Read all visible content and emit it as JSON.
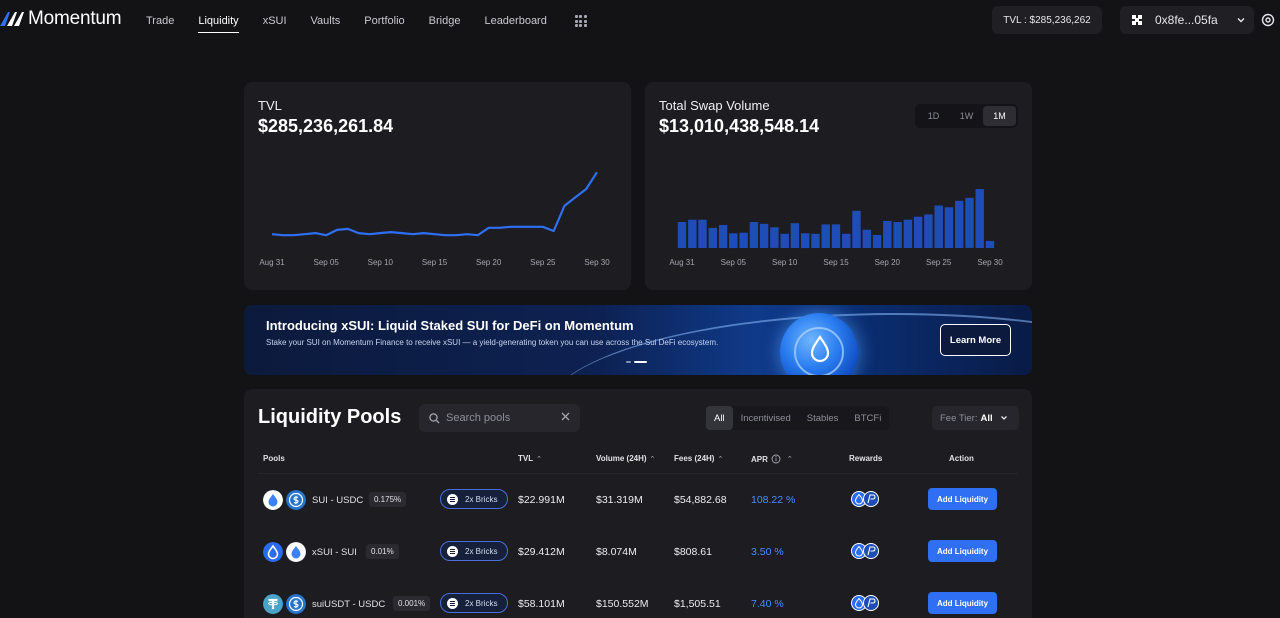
{
  "nav": {
    "logo_text": "Momentum",
    "links": [
      "Trade",
      "Liquidity",
      "xSUI",
      "Vaults",
      "Portfolio",
      "Bridge",
      "Leaderboard"
    ],
    "active": "Liquidity",
    "tvl_chip": "TVL : $285,236,262",
    "wallet": "0x8fe...05fa"
  },
  "tvl_card": {
    "title": "TVL",
    "value": "$285,236,261.84",
    "x_labels": [
      "Aug 31",
      "Sep 05",
      "Sep 10",
      "Sep 15",
      "Sep 20",
      "Sep 25",
      "Sep 30"
    ]
  },
  "swap_card": {
    "title": "Total Swap Volume",
    "value": "$13,010,438,548.14",
    "ranges": [
      "1D",
      "1W",
      "1M"
    ],
    "active_range": "1M",
    "x_labels": [
      "Aug 31",
      "Sep 05",
      "Sep 10",
      "Sep 15",
      "Sep 20",
      "Sep 25",
      "Sep 30"
    ]
  },
  "chart_data": [
    {
      "type": "line",
      "title": "TVL",
      "x": [
        "Aug 31",
        "Sep 01",
        "Sep 02",
        "Sep 03",
        "Sep 04",
        "Sep 05",
        "Sep 06",
        "Sep 07",
        "Sep 08",
        "Sep 09",
        "Sep 10",
        "Sep 11",
        "Sep 12",
        "Sep 13",
        "Sep 14",
        "Sep 15",
        "Sep 16",
        "Sep 17",
        "Sep 18",
        "Sep 19",
        "Sep 20",
        "Sep 21",
        "Sep 22",
        "Sep 23",
        "Sep 24",
        "Sep 25",
        "Sep 26",
        "Sep 27",
        "Sep 28",
        "Sep 29",
        "Sep 30"
      ],
      "values": [
        0.17,
        0.16,
        0.16,
        0.17,
        0.18,
        0.16,
        0.21,
        0.22,
        0.18,
        0.17,
        0.18,
        0.19,
        0.18,
        0.17,
        0.18,
        0.17,
        0.16,
        0.16,
        0.17,
        0.16,
        0.23,
        0.23,
        0.24,
        0.24,
        0.24,
        0.24,
        0.2,
        0.44,
        0.52,
        0.6,
        0.76
      ]
    },
    {
      "type": "bar",
      "title": "Total Swap Volume",
      "x": [
        "Aug 31",
        "Sep 01",
        "Sep 02",
        "Sep 03",
        "Sep 04",
        "Sep 05",
        "Sep 06",
        "Sep 07",
        "Sep 08",
        "Sep 09",
        "Sep 10",
        "Sep 11",
        "Sep 12",
        "Sep 13",
        "Sep 14",
        "Sep 15",
        "Sep 16",
        "Sep 17",
        "Sep 18",
        "Sep 19",
        "Sep 20",
        "Sep 21",
        "Sep 22",
        "Sep 23",
        "Sep 24",
        "Sep 25",
        "Sep 26",
        "Sep 27",
        "Sep 28",
        "Sep 29",
        "Sep 30"
      ],
      "values": [
        0.44,
        0.48,
        0.48,
        0.34,
        0.39,
        0.25,
        0.26,
        0.44,
        0.41,
        0.35,
        0.24,
        0.42,
        0.25,
        0.24,
        0.4,
        0.4,
        0.24,
        0.63,
        0.31,
        0.22,
        0.46,
        0.44,
        0.48,
        0.53,
        0.57,
        0.72,
        0.69,
        0.8,
        0.85,
        1.0,
        0.12
      ],
      "ylim": [
        0,
        1
      ]
    }
  ],
  "banner": {
    "title": "Introducing xSUI: Liquid Staked SUI for DeFi on Momentum",
    "subtitle": "Stake your SUI on Momentum Finance to receive xSUI — a yield-generating token you can use across the Sui DeFi ecosystem.",
    "cta": "Learn More"
  },
  "pools": {
    "title": "Liquidity Pools",
    "search_placeholder": "Search pools",
    "filters": [
      "All",
      "Incentivised",
      "Stables",
      "BTCFi"
    ],
    "active_filter": "All",
    "fee_tier_label": "Fee Tier:",
    "fee_tier_value": "All",
    "columns": {
      "pools": "Pools",
      "tvl": "TVL",
      "volume": "Volume (24H)",
      "fees": "Fees (24H)",
      "apr": "APR",
      "rewards": "Rewards",
      "action": "Action"
    },
    "rows": [
      {
        "name": "SUI - USDC",
        "fee": "0.175%",
        "bricks": "2x Bricks",
        "tvl": "$22.991M",
        "volume": "$31.319M",
        "fees": "$54,882.68",
        "apr": "108.22 %",
        "action": "Add Liquidity",
        "tokens": [
          "sui",
          "usdc"
        ]
      },
      {
        "name": "xSUI - SUI",
        "fee": "0.01%",
        "bricks": "2x Bricks",
        "tvl": "$29.412M",
        "volume": "$8.074M",
        "fees": "$808.61",
        "apr": "3.50 %",
        "action": "Add Liquidity",
        "tokens": [
          "xsui",
          "sui"
        ]
      },
      {
        "name": "suiUSDT - USDC",
        "fee": "0.001%",
        "bricks": "2x Bricks",
        "tvl": "$58.101M",
        "volume": "$150.552M",
        "fees": "$1,505.51",
        "apr": "7.40 %",
        "action": "Add Liquidity",
        "tokens": [
          "usdt",
          "usdc"
        ]
      }
    ]
  },
  "colors": {
    "accent": "#2f6ff3",
    "apr": "#4a8dff",
    "line": "#2f6ff3",
    "bar": "#1f4db8",
    "card": "#1c1c21",
    "background": "#131316"
  }
}
